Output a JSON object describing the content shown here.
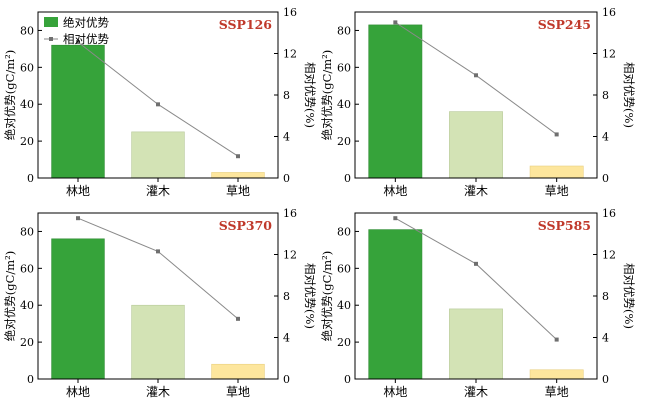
{
  "legend": {
    "bar_label": "绝对优势",
    "line_label": "相对优势"
  },
  "chart_data": [
    {
      "type": "bar",
      "title": "SSP126",
      "categories": [
        "林地",
        "灌木",
        "草地"
      ],
      "series": [
        {
          "name": "绝对优势",
          "kind": "bar",
          "axis": "left",
          "values": [
            72,
            25,
            3
          ]
        },
        {
          "name": "相对优势",
          "kind": "line",
          "axis": "right",
          "values": [
            13.1,
            7.1,
            2.1
          ]
        }
      ],
      "ylabel": "绝对优势(gC/m²)",
      "y2label": "相对优势(%)",
      "ylim": [
        0,
        90
      ],
      "y2lim": [
        0,
        16
      ],
      "yticks": [
        0,
        20,
        40,
        60,
        80
      ],
      "y2ticks": [
        0,
        4,
        8,
        12,
        16
      ],
      "legend_position": "top-left"
    },
    {
      "type": "bar",
      "title": "SSP245",
      "categories": [
        "林地",
        "灌木",
        "草地"
      ],
      "series": [
        {
          "name": "绝对优势",
          "kind": "bar",
          "axis": "left",
          "values": [
            83,
            36,
            6.5
          ]
        },
        {
          "name": "相对优势",
          "kind": "line",
          "axis": "right",
          "values": [
            15.0,
            9.9,
            4.2
          ]
        }
      ],
      "ylabel": "绝对优势(gC/m²)",
      "y2label": "相对优势(%)",
      "ylim": [
        0,
        90
      ],
      "y2lim": [
        0,
        16
      ],
      "yticks": [
        0,
        20,
        40,
        60,
        80
      ],
      "y2ticks": [
        0,
        4,
        8,
        12,
        16
      ]
    },
    {
      "type": "bar",
      "title": "SSP370",
      "categories": [
        "林地",
        "灌木",
        "草地"
      ],
      "series": [
        {
          "name": "绝对优势",
          "kind": "bar",
          "axis": "left",
          "values": [
            76,
            40,
            8
          ]
        },
        {
          "name": "相对优势",
          "kind": "line",
          "axis": "right",
          "values": [
            15.5,
            12.3,
            5.8
          ]
        }
      ],
      "ylabel": "绝对优势(gC/m²)",
      "y2label": "相对优势(%)",
      "ylim": [
        0,
        90
      ],
      "y2lim": [
        0,
        16
      ],
      "yticks": [
        0,
        20,
        40,
        60,
        80
      ],
      "y2ticks": [
        0,
        4,
        8,
        12,
        16
      ]
    },
    {
      "type": "bar",
      "title": "SSP585",
      "categories": [
        "林地",
        "灌木",
        "草地"
      ],
      "series": [
        {
          "name": "绝对优势",
          "kind": "bar",
          "axis": "left",
          "values": [
            81,
            38,
            5
          ]
        },
        {
          "name": "相对优势",
          "kind": "line",
          "axis": "right",
          "values": [
            15.5,
            11.1,
            3.8
          ]
        }
      ],
      "ylabel": "绝对优势(gC/m²)",
      "y2label": "相对优势(%)",
      "ylim": [
        0,
        90
      ],
      "y2lim": [
        0,
        16
      ],
      "yticks": [
        0,
        20,
        40,
        60,
        80
      ],
      "y2ticks": [
        0,
        4,
        8,
        12,
        16
      ]
    }
  ],
  "colors": {
    "bars": [
      "#36a33a",
      "#d3e3b5",
      "#fde69d"
    ],
    "bar_edges": [
      "#2e8b32",
      "#b7c99a",
      "#e8cf80"
    ],
    "line": "#8a8a8a",
    "title": "#c0392b",
    "axis": "#000000"
  }
}
